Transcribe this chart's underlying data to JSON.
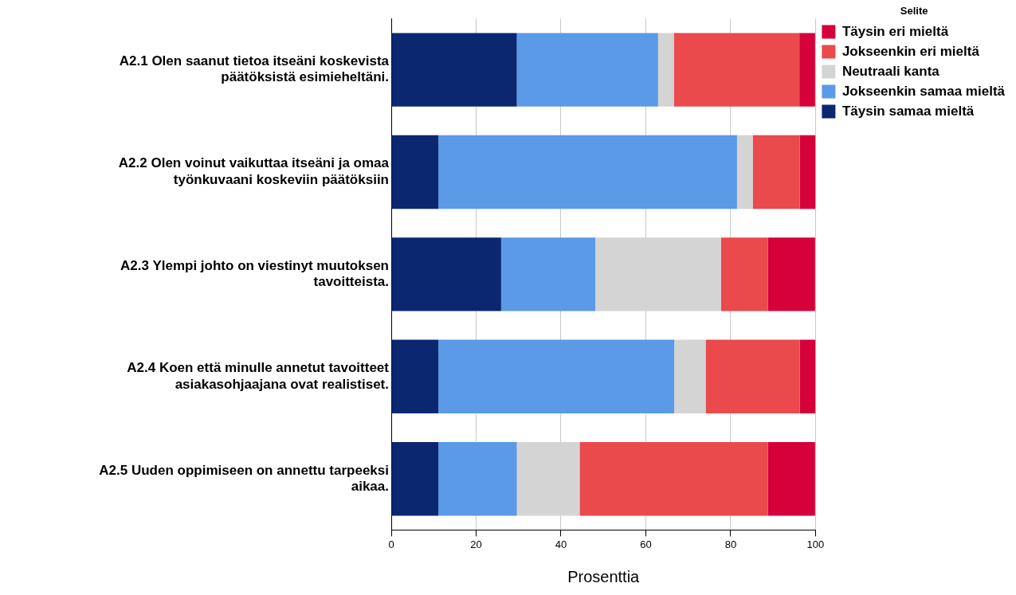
{
  "chart_data": {
    "type": "bar",
    "orientation": "horizontal",
    "stacked": true,
    "categories": [
      "A2.1 Olen saanut tietoa itseäni koskevista päätöksistä esimieheltäni.",
      "A2.2 Olen voinut vaikuttaa itseäni ja omaa työnkuvaani koskeviin päätöksiin",
      "A2.3 Ylempi johto on viestinyt muutoksen tavoitteista.",
      "A2.4 Koen että minulle annetut tavoitteet asiakasohjaajana ovat realistiset.",
      "A2.5 Uuden oppimiseen on annettu tarpeeksi aikaa."
    ],
    "series": [
      {
        "name": "Täysin samaa mieltä",
        "color": "#0b2770",
        "values": [
          29.6,
          11.1,
          25.9,
          11.1,
          11.1
        ]
      },
      {
        "name": "Jokseenkin samaa mieltä",
        "color": "#5a9ae6",
        "values": [
          33.3,
          70.4,
          22.2,
          55.6,
          18.5
        ]
      },
      {
        "name": "Neutraali kanta",
        "color": "#d4d4d4",
        "values": [
          3.7,
          3.7,
          29.6,
          7.4,
          14.8
        ]
      },
      {
        "name": "Jokseenkin eri mieltä",
        "color": "#ea4a4c",
        "values": [
          29.6,
          11.1,
          11.1,
          22.2,
          44.4
        ]
      },
      {
        "name": "Täysin eri mieltä",
        "color": "#d6003b",
        "values": [
          3.7,
          3.7,
          11.1,
          3.7,
          11.1
        ]
      }
    ],
    "xlabel": "Prosenttia",
    "xlim": [
      0,
      100
    ],
    "xticks": [
      0,
      20,
      40,
      60,
      80,
      100
    ],
    "grid": "x",
    "legend": "top right",
    "legend_title": "Selite"
  }
}
